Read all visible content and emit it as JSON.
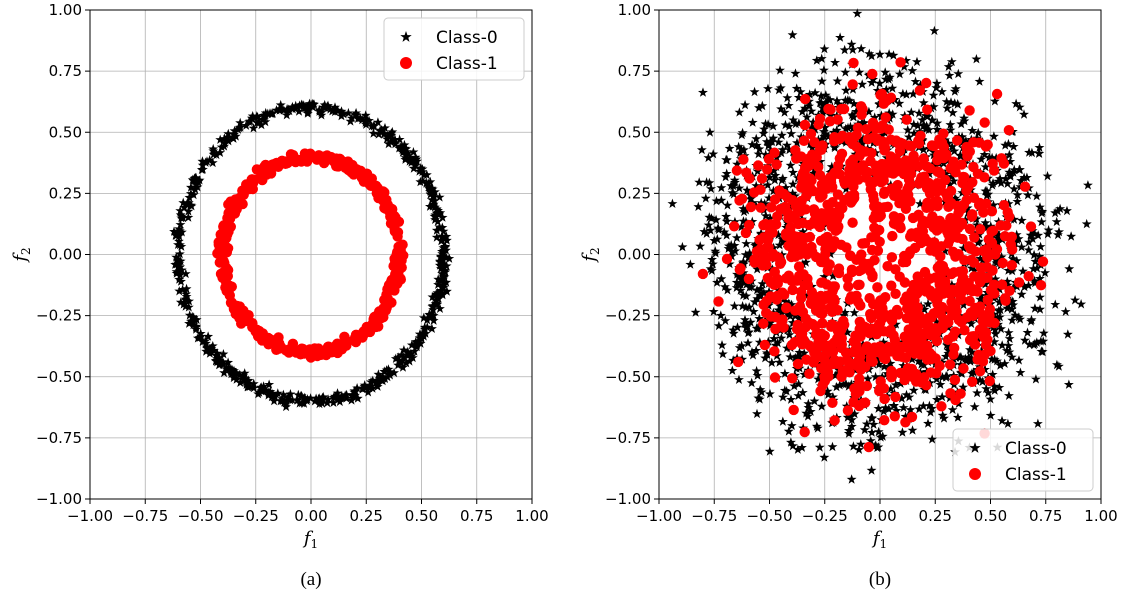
{
  "chart_data": [
    {
      "type": "scatter",
      "panel": "(a)",
      "xlabel": "f",
      "xlabel_sub": "1",
      "ylabel": "f",
      "ylabel_sub": "2",
      "xlim": [
        -1.0,
        1.0
      ],
      "ylim": [
        -1.0,
        1.0
      ],
      "xticks": [
        "−1.00",
        "−0.75",
        "−0.50",
        "−0.25",
        "0.00",
        "0.25",
        "0.50",
        "0.75",
        "1.00"
      ],
      "yticks": [
        "−1.00",
        "−0.75",
        "−0.50",
        "−0.25",
        "0.00",
        "0.25",
        "0.50",
        "0.75",
        "1.00"
      ],
      "grid": true,
      "legend_position": "top-right",
      "series": [
        {
          "name": "Class-0",
          "marker": "star",
          "color": "#000000",
          "shape": "ring",
          "center": [
            0,
            0
          ],
          "radius": 0.6,
          "noise": 0.012,
          "n": 600
        },
        {
          "name": "Class-1",
          "marker": "circle",
          "color": "#ff0000",
          "shape": "ring",
          "center": [
            0,
            0
          ],
          "radius": 0.4,
          "noise": 0.012,
          "n": 400
        }
      ]
    },
    {
      "type": "scatter",
      "panel": "(b)",
      "xlabel": "f",
      "xlabel_sub": "1",
      "ylabel": "f",
      "ylabel_sub": "2",
      "xlim": [
        -1.0,
        1.0
      ],
      "ylim": [
        -1.0,
        1.0
      ],
      "xticks": [
        "−1.00",
        "−0.75",
        "−0.50",
        "−0.25",
        "0.00",
        "0.25",
        "0.50",
        "0.75",
        "1.00"
      ],
      "yticks": [
        "−1.00",
        "−0.75",
        "−0.50",
        "−0.25",
        "0.00",
        "0.25",
        "0.50",
        "0.75",
        "1.00"
      ],
      "grid": true,
      "legend_position": "bottom-right",
      "series": [
        {
          "name": "Class-0",
          "marker": "star",
          "color": "#000000",
          "shape": "noisy-ring",
          "center": [
            0,
            0
          ],
          "radius": 0.6,
          "noise": 0.14,
          "n": 1400
        },
        {
          "name": "Class-1",
          "marker": "circle",
          "color": "#ff0000",
          "shape": "noisy-ring",
          "center": [
            0,
            0
          ],
          "radius": 0.4,
          "noise": 0.14,
          "n": 1100
        }
      ]
    }
  ],
  "captions": [
    "(a)",
    "(b)"
  ],
  "colors": {
    "grid": "#b0b0b0",
    "class0": "#000000",
    "class1": "#ff0000"
  }
}
